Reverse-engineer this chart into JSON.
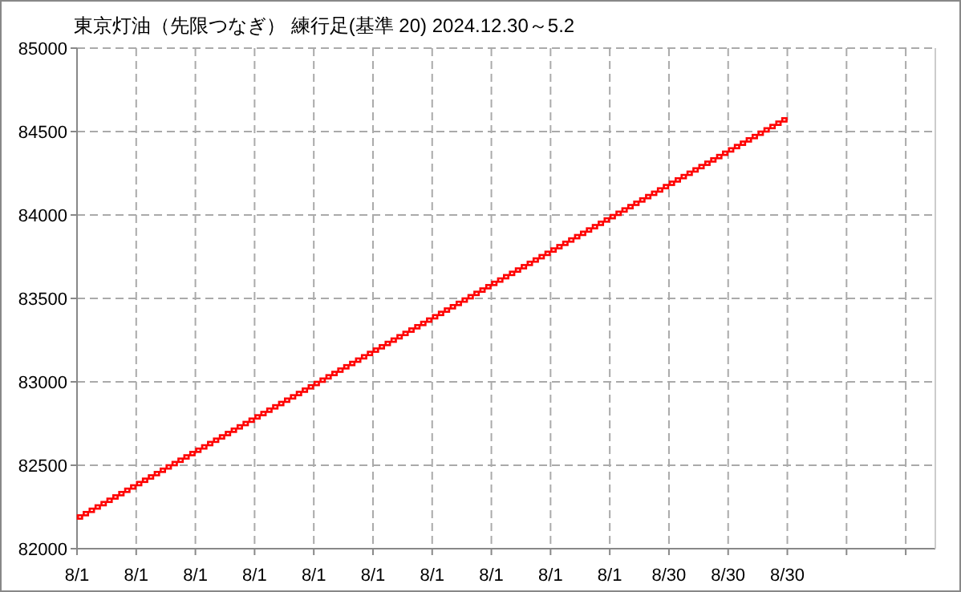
{
  "chart_data": {
    "type": "bar",
    "title": "東京灯油（先限つなぎ） 練行足(基準 20)  2024.12.30～5.2",
    "categories": [
      "8/1",
      null,
      null,
      null,
      null,
      null,
      null,
      null,
      null,
      null,
      "8/1",
      null,
      null,
      null,
      null,
      null,
      null,
      null,
      null,
      null,
      "8/1",
      null,
      null,
      null,
      null,
      null,
      null,
      null,
      null,
      null,
      "8/1",
      null,
      null,
      null,
      null,
      null,
      null,
      null,
      null,
      null,
      "8/1",
      null,
      null,
      null,
      null,
      null,
      null,
      null,
      null,
      null,
      "8/1",
      null,
      null,
      null,
      null,
      null,
      null,
      null,
      null,
      null,
      "8/1",
      null,
      null,
      null,
      null,
      null,
      null,
      null,
      null,
      null,
      "8/1",
      null,
      null,
      null,
      null,
      null,
      null,
      null,
      null,
      null,
      "8/1",
      null,
      null,
      null,
      null,
      null,
      null,
      null,
      null,
      null,
      "8/1",
      null,
      null,
      null,
      null,
      null,
      null,
      null,
      null,
      null,
      "8/30",
      null,
      null,
      null,
      null,
      null,
      null,
      null,
      null,
      null,
      "8/30",
      null,
      null,
      null,
      null,
      null,
      null,
      null,
      null,
      null,
      "8/30",
      null,
      null,
      null,
      null,
      null,
      null,
      null,
      null,
      null,
      null,
      null,
      null,
      null,
      null,
      null,
      null,
      null,
      null,
      null,
      null,
      null,
      null,
      null,
      null
    ],
    "values": [
      20,
      20,
      20,
      20,
      20,
      20,
      20,
      20,
      20,
      20,
      20,
      20,
      20,
      20,
      20,
      20,
      20,
      20,
      20,
      20,
      20,
      20,
      20,
      20,
      20,
      20,
      20,
      20,
      20,
      20,
      20,
      20,
      20,
      20,
      20,
      20,
      20,
      20,
      20,
      20,
      20,
      20,
      20,
      20,
      20,
      20,
      20,
      20,
      20,
      20,
      20,
      20,
      20,
      20,
      20,
      20,
      20,
      20,
      20,
      20,
      20,
      20,
      20,
      20,
      20,
      20,
      20,
      20,
      20,
      20,
      20,
      20,
      20,
      20,
      20,
      20,
      20,
      20,
      20,
      20,
      20,
      20,
      20,
      20,
      20,
      20,
      20,
      20,
      20,
      20,
      20,
      20,
      20,
      20,
      20,
      20,
      20,
      20,
      20,
      20,
      20,
      20,
      20,
      20,
      20,
      20,
      20,
      20,
      20,
      20,
      20,
      20,
      20,
      20,
      20,
      20,
      20,
      20,
      20,
      20,
      null,
      null,
      null,
      null,
      null,
      null,
      null,
      null,
      null,
      null,
      null,
      null,
      null,
      null,
      null,
      null,
      null,
      null,
      null,
      null,
      null,
      null,
      null,
      null,
      null
    ],
    "base": [
      82180,
      82200,
      82220,
      82240,
      82260,
      82280,
      82300,
      82320,
      82340,
      82360,
      82380,
      82400,
      82420,
      82440,
      82460,
      82480,
      82500,
      82520,
      82540,
      82560,
      82580,
      82600,
      82620,
      82640,
      82660,
      82680,
      82700,
      82720,
      82740,
      82760,
      82780,
      82800,
      82820,
      82840,
      82860,
      82880,
      82900,
      82920,
      82940,
      82960,
      82980,
      83000,
      83020,
      83040,
      83060,
      83080,
      83100,
      83120,
      83140,
      83160,
      83180,
      83200,
      83220,
      83240,
      83260,
      83280,
      83300,
      83320,
      83340,
      83360,
      83380,
      83400,
      83420,
      83440,
      83460,
      83480,
      83500,
      83520,
      83540,
      83560,
      83580,
      83600,
      83620,
      83640,
      83660,
      83680,
      83700,
      83720,
      83740,
      83760,
      83780,
      83800,
      83820,
      83840,
      83860,
      83880,
      83900,
      83920,
      83940,
      83960,
      83980,
      84000,
      84020,
      84040,
      84060,
      84080,
      84100,
      84120,
      84140,
      84160,
      84180,
      84200,
      84220,
      84240,
      84260,
      84280,
      84300,
      84320,
      84340,
      84360,
      84380,
      84400,
      84420,
      84440,
      84460,
      84480,
      84500,
      84520,
      84540,
      84560,
      null,
      null,
      null,
      null,
      null,
      null,
      null,
      null,
      null,
      null,
      null,
      null,
      null,
      null,
      null,
      null,
      null,
      null,
      null,
      null,
      null,
      null,
      null,
      null,
      null
    ],
    "color": "#ff0000",
    "ylim": [
      82000,
      85000
    ],
    "yticks": [
      82000,
      82500,
      83000,
      83500,
      84000,
      84500,
      85000
    ],
    "grid": true
  }
}
